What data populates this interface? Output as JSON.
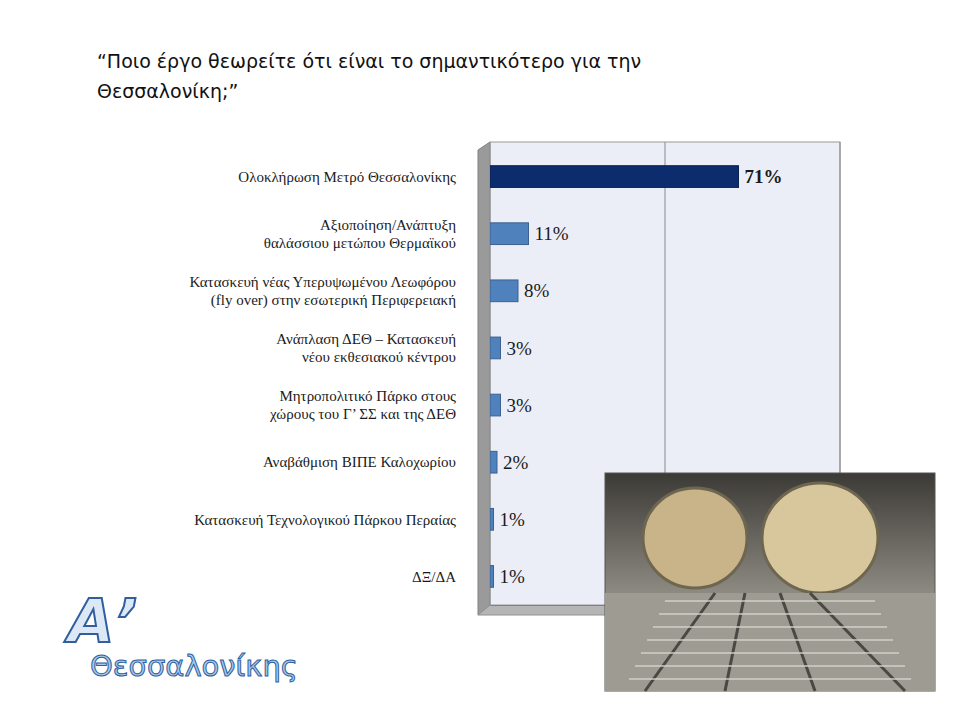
{
  "chart_data": {
    "type": "bar",
    "orientation": "horizontal",
    "title": "“Ποιο έργο θεωρείτε ότι είναι το σημαντικότερο για την Θεσσαλονίκη;”",
    "categories": [
      "Ολοκλήρωση Μετρό Θεσσαλονίκης",
      "Αξιοποίηση/Ανάπτυξη θαλάσσιου μετώπου Θερμαϊκού",
      "Κατασκευή νέας Υπερυψωμένου Λεωφόρου (fly over) στην εσωτερική Περιφερειακή",
      "Ανάπλαση ΔΕΘ – Κατασκευή νέου εκθεσιακού κέντρου",
      "Μητροπολιτικό Πάρκο στους χώρους του Γ’ ΣΣ και της ΔΕΘ",
      "Αναβάθμιση ΒΙΠΕ Καλοχωρίου",
      "Κατασκευή Τεχνολογικού Πάρκου Περαίας",
      "ΔΞ/ΔΑ"
    ],
    "values": [
      71,
      11,
      8,
      3,
      3,
      2,
      1,
      1
    ],
    "value_labels": [
      "71%",
      "11%",
      "8%",
      "3%",
      "3%",
      "2%",
      "1%",
      "1%"
    ],
    "colors": [
      "#0d2c6e",
      "#4f81bd",
      "#4f81bd",
      "#4f81bd",
      "#4f81bd",
      "#4f81bd",
      "#4f81bd",
      "#4f81bd"
    ],
    "xlim": [
      0,
      100
    ],
    "xticks": [
      0,
      50,
      100
    ],
    "grid": true,
    "tick_labels": "y",
    "data_labels": true
  },
  "logo": {
    "letter": "Α’",
    "text": "Θεσσαλονίκης"
  }
}
